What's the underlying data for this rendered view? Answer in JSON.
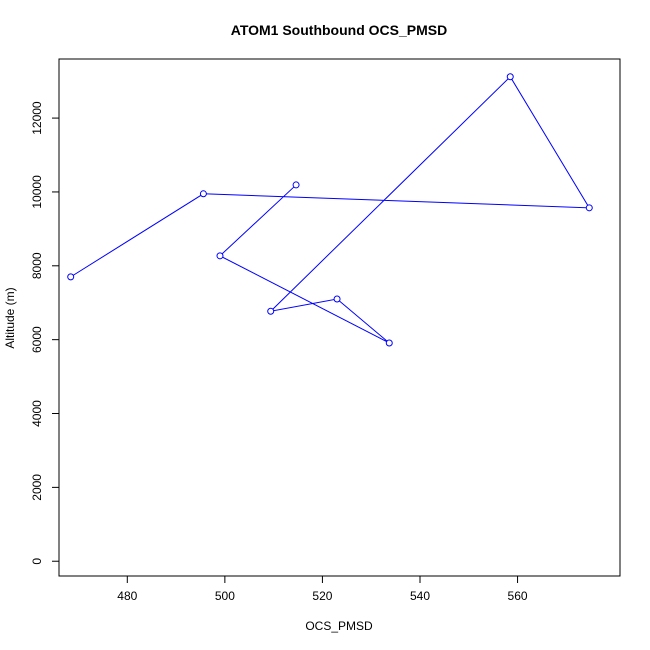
{
  "chart_data": {
    "type": "line",
    "title": "ATOM1 Southbound OCS_PMSD",
    "xlabel": "OCS_PMSD",
    "ylabel": "Altitude (m)",
    "xlim": [
      466,
      581
    ],
    "ylim": [
      -400,
      13600
    ],
    "x_ticks": [
      480,
      500,
      520,
      540,
      560
    ],
    "y_ticks": [
      0,
      2000,
      4000,
      6000,
      8000,
      10000,
      12000
    ],
    "grid": false,
    "legend": "none",
    "series": [
      {
        "color": "#0000ff",
        "marker": "open-circle",
        "points": [
          {
            "x": 468.4,
            "y": 7700
          },
          {
            "x": 495.6,
            "y": 9950
          },
          {
            "x": 574.7,
            "y": 9570
          },
          {
            "x": 558.5,
            "y": 13120
          },
          {
            "x": 509.4,
            "y": 6770
          },
          {
            "x": 523.0,
            "y": 7100
          },
          {
            "x": 533.7,
            "y": 5910
          },
          {
            "x": 499.0,
            "y": 8270
          },
          {
            "x": 514.6,
            "y": 10190
          }
        ]
      }
    ]
  }
}
